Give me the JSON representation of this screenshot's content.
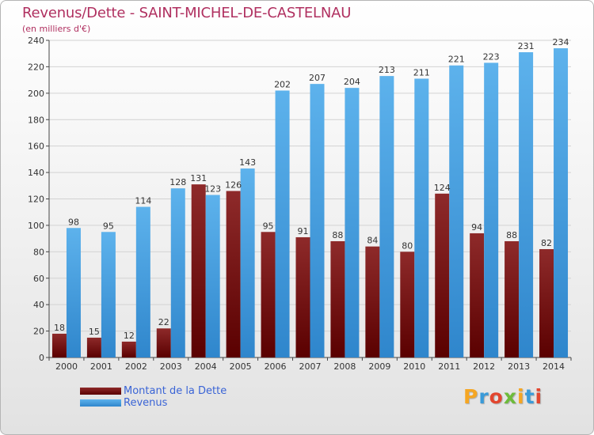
{
  "title": "Revenus/Dette - SAINT-MICHEL-DE-CASTELNAU",
  "subtitle": "(en milliers d'€)",
  "logo_text": "Proxiti",
  "colors": {
    "title": "#b03060",
    "dette": "#7a1616",
    "revenus": "#4ea6e6",
    "legend_text": "#3a64d6"
  },
  "chart_data": {
    "type": "bar",
    "categories": [
      "2000",
      "2001",
      "2002",
      "2003",
      "2004",
      "2005",
      "2006",
      "2007",
      "2008",
      "2009",
      "2010",
      "2011",
      "2012",
      "2013",
      "2014"
    ],
    "series": [
      {
        "name": "Montant de la Dette",
        "values": [
          18,
          15,
          12,
          22,
          131,
          126,
          95,
          91,
          88,
          84,
          80,
          124,
          94,
          88,
          82
        ]
      },
      {
        "name": "Revenus",
        "values": [
          98,
          95,
          114,
          128,
          123,
          143,
          202,
          207,
          204,
          213,
          211,
          221,
          223,
          231,
          234
        ]
      }
    ],
    "ylim": [
      0,
      240
    ],
    "yticks": [
      0,
      20,
      40,
      60,
      80,
      100,
      120,
      140,
      160,
      180,
      200,
      220,
      240
    ],
    "grid": true,
    "legend_position": "bottom-left"
  }
}
